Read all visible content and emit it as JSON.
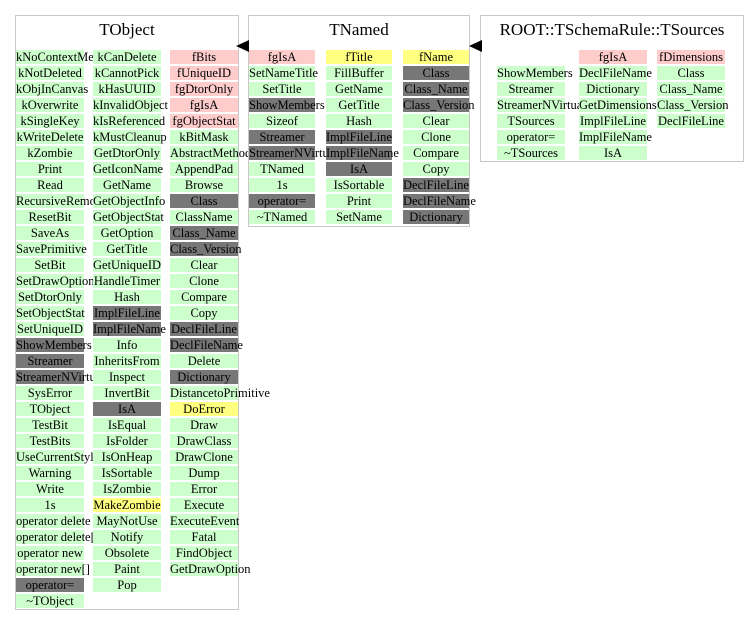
{
  "colors": {
    "green": "#ccffcc",
    "pink": "#ffcccc",
    "yellow": "#ffff80",
    "gray": "#777777"
  },
  "tobject": {
    "title": "TObject",
    "col1": [
      {
        "t": "kNoContextMenu",
        "c": "green"
      },
      {
        "t": "kNotDeleted",
        "c": "green"
      },
      {
        "t": "kObjInCanvas",
        "c": "green"
      },
      {
        "t": "kOverwrite",
        "c": "green"
      },
      {
        "t": "kSingleKey",
        "c": "green"
      },
      {
        "t": "kWriteDelete",
        "c": "green"
      },
      {
        "t": "kZombie",
        "c": "green"
      },
      {
        "t": "Print",
        "c": "green"
      },
      {
        "t": "Read",
        "c": "green"
      },
      {
        "t": "RecursiveRemove",
        "c": "green"
      },
      {
        "t": "ResetBit",
        "c": "green"
      },
      {
        "t": "SaveAs",
        "c": "green"
      },
      {
        "t": "SavePrimitive",
        "c": "green"
      },
      {
        "t": "SetBit",
        "c": "green"
      },
      {
        "t": "SetDrawOption",
        "c": "green"
      },
      {
        "t": "SetDtorOnly",
        "c": "green"
      },
      {
        "t": "SetObjectStat",
        "c": "green"
      },
      {
        "t": "SetUniqueID",
        "c": "green"
      },
      {
        "t": "ShowMembers",
        "c": "gray"
      },
      {
        "t": "Streamer",
        "c": "gray"
      },
      {
        "t": "StreamerNVirtual",
        "c": "gray"
      },
      {
        "t": "SysError",
        "c": "green"
      },
      {
        "t": "TObject",
        "c": "green"
      },
      {
        "t": "TestBit",
        "c": "green"
      },
      {
        "t": "TestBits",
        "c": "green"
      },
      {
        "t": "UseCurrentStyle",
        "c": "green"
      },
      {
        "t": "Warning",
        "c": "green"
      },
      {
        "t": "Write",
        "c": "green"
      },
      {
        "t": "1s",
        "c": "green"
      },
      {
        "t": "operator delete",
        "c": "green"
      },
      {
        "t": "operator delete[]",
        "c": "green"
      },
      {
        "t": "operator new",
        "c": "green"
      },
      {
        "t": "operator new[]",
        "c": "green"
      },
      {
        "t": "operator=",
        "c": "gray"
      },
      {
        "t": "~TObject",
        "c": "green"
      }
    ],
    "col2": [
      {
        "t": "kCanDelete",
        "c": "green"
      },
      {
        "t": "kCannotPick",
        "c": "green"
      },
      {
        "t": "kHasUUID",
        "c": "green"
      },
      {
        "t": "kInvalidObject",
        "c": "green"
      },
      {
        "t": "kIsReferenced",
        "c": "green"
      },
      {
        "t": "kMustCleanup",
        "c": "green"
      },
      {
        "t": "GetDtorOnly",
        "c": "green"
      },
      {
        "t": "GetIconName",
        "c": "green"
      },
      {
        "t": "GetName",
        "c": "green"
      },
      {
        "t": "GetObjectInfo",
        "c": "green"
      },
      {
        "t": "GetObjectStat",
        "c": "green"
      },
      {
        "t": "GetOption",
        "c": "green"
      },
      {
        "t": "GetTitle",
        "c": "green"
      },
      {
        "t": "GetUniqueID",
        "c": "green"
      },
      {
        "t": "HandleTimer",
        "c": "green"
      },
      {
        "t": "Hash",
        "c": "green"
      },
      {
        "t": "ImplFileLine",
        "c": "gray"
      },
      {
        "t": "ImplFileName",
        "c": "gray"
      },
      {
        "t": "Info",
        "c": "green"
      },
      {
        "t": "InheritsFrom",
        "c": "green"
      },
      {
        "t": "Inspect",
        "c": "green"
      },
      {
        "t": "InvertBit",
        "c": "green"
      },
      {
        "t": "IsA",
        "c": "gray"
      },
      {
        "t": "IsEqual",
        "c": "green"
      },
      {
        "t": "IsFolder",
        "c": "green"
      },
      {
        "t": "IsOnHeap",
        "c": "green"
      },
      {
        "t": "IsSortable",
        "c": "green"
      },
      {
        "t": "IsZombie",
        "c": "green"
      },
      {
        "t": "MakeZombie",
        "c": "yellow"
      },
      {
        "t": "MayNotUse",
        "c": "green"
      },
      {
        "t": "Notify",
        "c": "green"
      },
      {
        "t": "Obsolete",
        "c": "green"
      },
      {
        "t": "Paint",
        "c": "green"
      },
      {
        "t": "Pop",
        "c": "green"
      }
    ],
    "col3": [
      {
        "t": "fBits",
        "c": "pink"
      },
      {
        "t": "fUniqueID",
        "c": "pink"
      },
      {
        "t": "fgDtorOnly",
        "c": "pink"
      },
      {
        "t": "fgIsA",
        "c": "pink"
      },
      {
        "t": "fgObjectStat",
        "c": "pink"
      },
      {
        "t": "kBitMask",
        "c": "green"
      },
      {
        "t": "AbstractMethod",
        "c": "green"
      },
      {
        "t": "AppendPad",
        "c": "green"
      },
      {
        "t": "Browse",
        "c": "green"
      },
      {
        "t": "Class",
        "c": "gray"
      },
      {
        "t": "ClassName",
        "c": "green"
      },
      {
        "t": "Class_Name",
        "c": "gray"
      },
      {
        "t": "Class_Version",
        "c": "gray"
      },
      {
        "t": "Clear",
        "c": "green"
      },
      {
        "t": "Clone",
        "c": "green"
      },
      {
        "t": "Compare",
        "c": "green"
      },
      {
        "t": "Copy",
        "c": "green"
      },
      {
        "t": "DeclFileLine",
        "c": "gray"
      },
      {
        "t": "DeclFileName",
        "c": "gray"
      },
      {
        "t": "Delete",
        "c": "green"
      },
      {
        "t": "Dictionary",
        "c": "gray"
      },
      {
        "t": "DistancetoPrimitive",
        "c": "green"
      },
      {
        "t": "DoError",
        "c": "yellow"
      },
      {
        "t": "Draw",
        "c": "green"
      },
      {
        "t": "DrawClass",
        "c": "green"
      },
      {
        "t": "DrawClone",
        "c": "green"
      },
      {
        "t": "Dump",
        "c": "green"
      },
      {
        "t": "Error",
        "c": "green"
      },
      {
        "t": "Execute",
        "c": "green"
      },
      {
        "t": "ExecuteEvent",
        "c": "green"
      },
      {
        "t": "Fatal",
        "c": "green"
      },
      {
        "t": "FindObject",
        "c": "green"
      },
      {
        "t": "GetDrawOption",
        "c": "green"
      }
    ]
  },
  "tnamed": {
    "title": "TNamed",
    "col1": [
      {
        "t": "fgIsA",
        "c": "pink"
      },
      {
        "t": "SetNameTitle",
        "c": "green"
      },
      {
        "t": "SetTitle",
        "c": "green"
      },
      {
        "t": "ShowMembers",
        "c": "gray"
      },
      {
        "t": "Sizeof",
        "c": "green"
      },
      {
        "t": "Streamer",
        "c": "gray"
      },
      {
        "t": "StreamerNVirtual",
        "c": "gray"
      },
      {
        "t": "TNamed",
        "c": "green"
      },
      {
        "t": "1s",
        "c": "green"
      },
      {
        "t": "operator=",
        "c": "gray"
      },
      {
        "t": "~TNamed",
        "c": "green"
      }
    ],
    "col2": [
      {
        "t": "fTitle",
        "c": "yellow"
      },
      {
        "t": "FillBuffer",
        "c": "green"
      },
      {
        "t": "GetName",
        "c": "green"
      },
      {
        "t": "GetTitle",
        "c": "green"
      },
      {
        "t": "Hash",
        "c": "green"
      },
      {
        "t": "ImplFileLine",
        "c": "gray"
      },
      {
        "t": "ImplFileName",
        "c": "gray"
      },
      {
        "t": "IsA",
        "c": "gray"
      },
      {
        "t": "IsSortable",
        "c": "green"
      },
      {
        "t": "Print",
        "c": "green"
      },
      {
        "t": "SetName",
        "c": "green"
      }
    ],
    "col3": [
      {
        "t": "fName",
        "c": "yellow"
      },
      {
        "t": "Class",
        "c": "gray"
      },
      {
        "t": "Class_Name",
        "c": "gray"
      },
      {
        "t": "Class_Version",
        "c": "gray"
      },
      {
        "t": "Clear",
        "c": "green"
      },
      {
        "t": "Clone",
        "c": "green"
      },
      {
        "t": "Compare",
        "c": "green"
      },
      {
        "t": "Copy",
        "c": "green"
      },
      {
        "t": "DeclFileLine",
        "c": "gray"
      },
      {
        "t": "DeclFileName",
        "c": "gray"
      },
      {
        "t": "Dictionary",
        "c": "gray"
      }
    ]
  },
  "tsources": {
    "title": "ROOT::TSchemaRule::TSources",
    "col1": [
      {
        "t": "",
        "c": "none"
      },
      {
        "t": "ShowMembers",
        "c": "green"
      },
      {
        "t": "Streamer",
        "c": "green"
      },
      {
        "t": "StreamerNVirtual",
        "c": "green"
      },
      {
        "t": "TSources",
        "c": "green"
      },
      {
        "t": "operator=",
        "c": "green"
      },
      {
        "t": "~TSources",
        "c": "green"
      }
    ],
    "col2": [
      {
        "t": "fgIsA",
        "c": "pink"
      },
      {
        "t": "DeclFileName",
        "c": "green"
      },
      {
        "t": "Dictionary",
        "c": "green"
      },
      {
        "t": "GetDimensions",
        "c": "green"
      },
      {
        "t": "ImplFileLine",
        "c": "green"
      },
      {
        "t": "ImplFileName",
        "c": "green"
      },
      {
        "t": "IsA",
        "c": "green"
      }
    ],
    "col3": [
      {
        "t": "fDimensions",
        "c": "pink"
      },
      {
        "t": "Class",
        "c": "green"
      },
      {
        "t": "Class_Name",
        "c": "green"
      },
      {
        "t": "Class_Version",
        "c": "green"
      },
      {
        "t": "DeclFileLine",
        "c": "green"
      }
    ]
  }
}
